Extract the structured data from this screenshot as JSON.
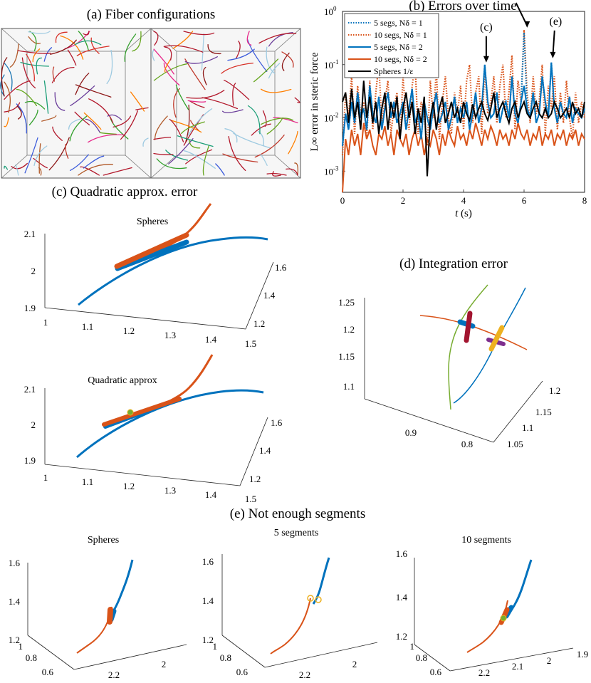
{
  "panels": {
    "a": {
      "title": "(a) Fiber configurations"
    },
    "b": {
      "title": "(b) Errors over time"
    },
    "c": {
      "title": "(c) Quadratic approx. error",
      "top_label": "Spheres",
      "bottom_label": "Quadratic approx",
      "z_ticks": [
        "2.1",
        "2",
        "1.9"
      ],
      "x_ticks": [
        "1",
        "1.1",
        "1.2",
        "1.3",
        "1.4",
        "1.5"
      ],
      "y_ticks": [
        "1.6",
        "1.4",
        "1.2"
      ]
    },
    "d": {
      "title": "(d) Integration error",
      "z_ticks": [
        "1.25",
        "1.2",
        "1.15",
        "1.1"
      ],
      "x_ticks": [
        "0.9",
        "0.8"
      ],
      "y_ticks": [
        "1.2",
        "1.15",
        "1.1",
        "1.05"
      ]
    },
    "e": {
      "title": "(e) Not enough segments",
      "subtitles": [
        "Spheres",
        "5 segments",
        "10 segments"
      ],
      "z_ticks": [
        "1.6",
        "1.4",
        "1.2"
      ],
      "y_ticks": [
        "1",
        "0.8",
        "0.6"
      ],
      "x_ticks_1": [
        "2.2",
        "2"
      ],
      "x_ticks_3": [
        "2.2",
        "2.1",
        "2",
        "1.9"
      ]
    }
  },
  "colors": {
    "blue": "#0072bd",
    "orange": "#d95319",
    "black": "#000000",
    "green": "#77ac30",
    "purple": "#7e2f8e",
    "yellow": "#edb120",
    "darkred": "#a2142f"
  },
  "chart_data": {
    "type": "line",
    "title": "(b) Errors over time",
    "xlabel": "t (s)",
    "ylabel": "L∞ error in steric force",
    "x_scale": "linear",
    "y_scale": "log",
    "xlim": [
      0,
      8
    ],
    "ylim": [
      0.0004,
      1
    ],
    "x_ticks": [
      0,
      2,
      4,
      6,
      8
    ],
    "y_ticks": [
      "10^-3",
      "10^-2",
      "10^-1",
      "10^0"
    ],
    "legend_position": "top-left",
    "annotations": [
      {
        "label": "(c)",
        "x": 4.75,
        "y": 0.1
      },
      {
        "label": "(d)",
        "x": 6.1,
        "y": 0.45
      },
      {
        "label": "(e)",
        "x": 6.95,
        "y": 0.12
      }
    ],
    "x": [
      0.0,
      0.1,
      0.2,
      0.3,
      0.4,
      0.5,
      0.6,
      0.7,
      0.8,
      0.9,
      1.0,
      1.1,
      1.2,
      1.3,
      1.4,
      1.5,
      1.6,
      1.7,
      1.8,
      1.9,
      2.0,
      2.1,
      2.2,
      2.3,
      2.4,
      2.5,
      2.6,
      2.7,
      2.8,
      2.9,
      3.0,
      3.1,
      3.2,
      3.3,
      3.4,
      3.5,
      3.6,
      3.7,
      3.8,
      3.9,
      4.0,
      4.1,
      4.2,
      4.3,
      4.4,
      4.5,
      4.6,
      4.7,
      4.8,
      4.9,
      5.0,
      5.1,
      5.2,
      5.3,
      5.4,
      5.5,
      5.6,
      5.7,
      5.8,
      5.9,
      6.0,
      6.1,
      6.2,
      6.3,
      6.4,
      6.5,
      6.6,
      6.7,
      6.8,
      6.9,
      7.0,
      7.1,
      7.2,
      7.3,
      7.4,
      7.5,
      7.6,
      7.7,
      7.8,
      7.9,
      8.0
    ],
    "series": [
      {
        "name": "5 segs, Nδ = 1",
        "style": "dotted",
        "color": "#0072bd",
        "values": [
          0.003,
          0.012,
          0.006,
          0.02,
          0.008,
          0.03,
          0.01,
          0.015,
          0.006,
          0.04,
          0.012,
          0.008,
          0.025,
          0.006,
          0.015,
          0.03,
          0.01,
          0.02,
          0.008,
          0.012,
          0.02,
          0.006,
          0.015,
          0.035,
          0.008,
          0.012,
          0.004,
          0.02,
          0.01,
          0.006,
          0.015,
          0.03,
          0.008,
          0.012,
          0.02,
          0.006,
          0.01,
          0.025,
          0.008,
          0.015,
          0.01,
          0.02,
          0.006,
          0.012,
          0.03,
          0.008,
          0.015,
          0.1,
          0.02,
          0.01,
          0.012,
          0.03,
          0.008,
          0.015,
          0.02,
          0.01,
          0.06,
          0.012,
          0.008,
          0.02,
          0.4,
          0.015,
          0.01,
          0.03,
          0.008,
          0.012,
          0.06,
          0.02,
          0.01,
          0.11,
          0.015,
          0.008,
          0.02,
          0.012,
          0.01,
          0.025,
          0.008,
          0.015,
          0.012,
          0.01,
          0.015
        ]
      },
      {
        "name": "10 segs, Nδ = 1",
        "style": "dotted",
        "color": "#d95319",
        "values": [
          0.002,
          0.03,
          0.01,
          0.06,
          0.005,
          0.04,
          0.012,
          0.02,
          0.004,
          0.05,
          0.006,
          0.03,
          0.1,
          0.008,
          0.02,
          0.05,
          0.005,
          0.015,
          0.03,
          0.004,
          0.06,
          0.01,
          0.006,
          0.04,
          0.1,
          0.005,
          0.02,
          0.012,
          0.003,
          0.05,
          0.01,
          0.08,
          0.004,
          0.02,
          0.06,
          0.01,
          0.005,
          0.03,
          0.012,
          0.04,
          0.006,
          0.05,
          0.1,
          0.008,
          0.03,
          0.06,
          0.005,
          0.09,
          0.012,
          0.02,
          0.06,
          0.008,
          0.04,
          0.1,
          0.01,
          0.03,
          0.15,
          0.006,
          0.05,
          0.02,
          0.45,
          0.03,
          0.008,
          0.06,
          0.012,
          0.02,
          0.1,
          0.005,
          0.04,
          0.015,
          0.06,
          0.006,
          0.03,
          0.008,
          0.05,
          0.01,
          0.004,
          0.03,
          0.008,
          0.02,
          0.01
        ]
      },
      {
        "name": "5 segs, Nδ = 2",
        "style": "solid",
        "color": "#0072bd",
        "values": [
          0.003,
          0.012,
          0.006,
          0.02,
          0.008,
          0.03,
          0.01,
          0.015,
          0.006,
          0.04,
          0.012,
          0.008,
          0.025,
          0.006,
          0.015,
          0.03,
          0.01,
          0.02,
          0.008,
          0.012,
          0.02,
          0.006,
          0.015,
          0.035,
          0.008,
          0.012,
          0.004,
          0.02,
          0.01,
          0.006,
          0.015,
          0.03,
          0.008,
          0.012,
          0.02,
          0.006,
          0.01,
          0.025,
          0.008,
          0.015,
          0.01,
          0.02,
          0.006,
          0.012,
          0.03,
          0.008,
          0.015,
          0.1,
          0.02,
          0.01,
          0.012,
          0.03,
          0.008,
          0.015,
          0.02,
          0.01,
          0.06,
          0.012,
          0.008,
          0.02,
          0.04,
          0.015,
          0.01,
          0.03,
          0.008,
          0.012,
          0.06,
          0.02,
          0.01,
          0.11,
          0.015,
          0.008,
          0.02,
          0.012,
          0.01,
          0.025,
          0.008,
          0.015,
          0.012,
          0.01,
          0.015
        ]
      },
      {
        "name": "10 segs, Nδ = 2",
        "style": "solid",
        "color": "#d95319",
        "values": [
          0.0004,
          0.004,
          0.002,
          0.006,
          0.003,
          0.005,
          0.002,
          0.008,
          0.004,
          0.006,
          0.003,
          0.002,
          0.005,
          0.004,
          0.007,
          0.003,
          0.005,
          0.002,
          0.006,
          0.004,
          0.003,
          0.005,
          0.002,
          0.004,
          0.006,
          0.003,
          0.005,
          0.002,
          0.004,
          0.003,
          0.006,
          0.004,
          0.002,
          0.005,
          0.003,
          0.006,
          0.004,
          0.003,
          0.007,
          0.004,
          0.005,
          0.003,
          0.006,
          0.004,
          0.008,
          0.005,
          0.003,
          0.006,
          0.004,
          0.007,
          0.005,
          0.003,
          0.006,
          0.004,
          0.005,
          0.003,
          0.006,
          0.004,
          0.008,
          0.005,
          0.004,
          0.006,
          0.003,
          0.005,
          0.004,
          0.007,
          0.003,
          0.005,
          0.004,
          0.006,
          0.003,
          0.005,
          0.004,
          0.006,
          0.003,
          0.005,
          0.004,
          0.006,
          0.003,
          0.005,
          0.004
        ]
      },
      {
        "name": "Spheres 1/ε",
        "style": "solid",
        "color": "#000000",
        "values": [
          0.02,
          0.03,
          0.008,
          0.035,
          0.01,
          0.02,
          0.006,
          0.05,
          0.01,
          0.025,
          0.008,
          0.02,
          0.005,
          0.015,
          0.03,
          0.006,
          0.02,
          0.01,
          0.025,
          0.004,
          0.015,
          0.03,
          0.01,
          0.02,
          0.005,
          0.015,
          0.008,
          0.025,
          0.0008,
          0.01,
          0.02,
          0.006,
          0.015,
          0.025,
          0.008,
          0.012,
          0.02,
          0.01,
          0.015,
          0.008,
          0.02,
          0.012,
          0.009,
          0.018,
          0.01,
          0.015,
          0.02,
          0.012,
          0.009,
          0.015,
          0.03,
          0.01,
          0.015,
          0.02,
          0.012,
          0.008,
          0.015,
          0.02,
          0.01,
          0.015,
          0.02,
          0.012,
          0.01,
          0.015,
          0.02,
          0.012,
          0.01,
          0.015,
          0.01,
          0.012,
          0.02,
          0.015,
          0.01,
          0.012,
          0.015,
          0.01,
          0.02,
          0.012,
          0.015,
          0.01,
          0.02
        ]
      }
    ]
  }
}
